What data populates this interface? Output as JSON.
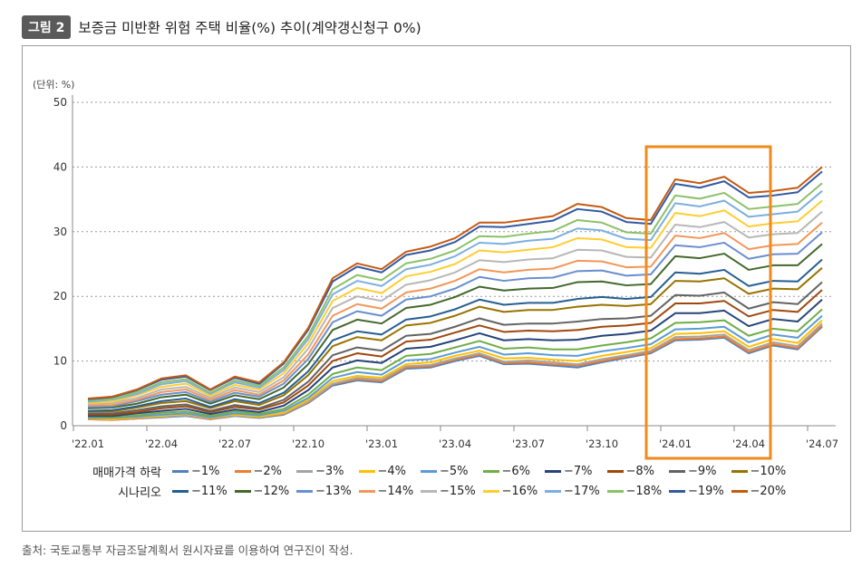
{
  "header": {
    "figure_label": "그림 2",
    "title": "보증금 미반환 위험 주택 비율(%) 추이(계약갱신청구 0%)"
  },
  "source": "출처: 국토교통부 자금조달계획서 원시자료를 이용하여 연구진이 작성.",
  "highlight_color": "#f08a1c",
  "chart_data": {
    "type": "line",
    "unit_label": "(단위: %)",
    "ylim": [
      0,
      50
    ],
    "yticks": [
      "0",
      "10",
      "20",
      "30",
      "40",
      "50"
    ],
    "grid": true,
    "x": [
      "'22.01",
      "'22.02",
      "'22.03",
      "'22.04",
      "'22.05",
      "'22.06",
      "'22.07",
      "'22.08",
      "'22.09",
      "'22.10",
      "'22.11",
      "'22.12",
      "'23.01",
      "'23.02",
      "'23.03",
      "'23.04",
      "'23.05",
      "'23.06",
      "'23.07",
      "'23.08",
      "'23.09",
      "'23.10",
      "'23.11",
      "'23.12",
      "'24.01",
      "'24.02",
      "'24.03",
      "'24.04",
      "'24.05",
      "'24.06",
      "'24.07"
    ],
    "xtick_labels": [
      "'22.01",
      "'22.04",
      "'22.07",
      "'22.10",
      "'23.01",
      "'23.04",
      "'23.07",
      "'23.10",
      "'24.01",
      "'24.04",
      "'24.07"
    ],
    "highlight_range": [
      "'23.12",
      "'24.04"
    ],
    "legend": {
      "row1_title": "매매가격 하락",
      "row2_title": "시나리오",
      "placement": "bottom"
    },
    "series": [
      {
        "name": "−1%",
        "color": "#4f81bd",
        "values": [
          1.0,
          0.9,
          1.1,
          1.3,
          1.5,
          1.0,
          1.5,
          1.2,
          1.7,
          3.5,
          6.2,
          7.0,
          6.7,
          8.8,
          9.0,
          10.0,
          10.8,
          9.5,
          9.6,
          9.3,
          9.0,
          9.8,
          10.5,
          11.2,
          13.2,
          13.3,
          13.6,
          11.2,
          12.4,
          11.8,
          15.3
        ]
      },
      {
        "name": "−2%",
        "color": "#ed7d31",
        "values": [
          1.0,
          0.9,
          1.1,
          1.4,
          1.6,
          1.0,
          1.6,
          1.3,
          1.8,
          3.6,
          6.4,
          7.2,
          6.9,
          9.0,
          9.2,
          10.2,
          11.0,
          9.7,
          9.8,
          9.5,
          9.3,
          10.0,
          10.7,
          11.4,
          13.4,
          13.5,
          13.8,
          11.4,
          12.6,
          12.0,
          15.5
        ]
      },
      {
        "name": "−3%",
        "color": "#a5a5a5",
        "values": [
          1.1,
          1.0,
          1.2,
          1.4,
          1.6,
          1.1,
          1.6,
          1.3,
          1.9,
          3.7,
          6.5,
          7.4,
          7.1,
          9.2,
          9.4,
          10.4,
          11.2,
          9.9,
          10.1,
          9.8,
          9.5,
          10.3,
          10.9,
          11.6,
          13.7,
          13.8,
          14.1,
          11.7,
          12.9,
          12.3,
          15.8
        ]
      },
      {
        "name": "−4%",
        "color": "#ffc000",
        "values": [
          1.1,
          1.0,
          1.3,
          1.5,
          1.8,
          1.2,
          1.7,
          1.4,
          2.0,
          4.0,
          6.9,
          7.7,
          7.4,
          9.5,
          9.8,
          10.8,
          11.6,
          10.4,
          10.5,
          10.2,
          10.0,
          10.8,
          11.4,
          12.0,
          14.2,
          14.3,
          14.6,
          12.2,
          13.4,
          12.8,
          16.3
        ]
      },
      {
        "name": "−5%",
        "color": "#5b9bd5",
        "values": [
          1.2,
          1.2,
          1.4,
          1.7,
          1.9,
          1.3,
          1.9,
          1.6,
          2.3,
          4.3,
          7.4,
          8.3,
          7.9,
          10.1,
          10.3,
          11.3,
          12.2,
          11.0,
          11.2,
          10.9,
          10.8,
          11.5,
          12.0,
          12.6,
          14.9,
          15.0,
          15.3,
          12.9,
          14.1,
          13.6,
          17.0
        ]
      },
      {
        "name": "−6%",
        "color": "#70ad47",
        "values": [
          1.4,
          1.3,
          1.6,
          2.0,
          2.2,
          1.5,
          2.2,
          1.8,
          2.6,
          4.8,
          8.0,
          9.0,
          8.6,
          10.8,
          11.1,
          12.1,
          13.1,
          11.9,
          12.1,
          11.8,
          11.8,
          12.4,
          12.9,
          13.5,
          15.9,
          16.0,
          16.3,
          13.9,
          15.0,
          14.6,
          18.0
        ]
      },
      {
        "name": "−7%",
        "color": "#264478",
        "values": [
          1.5,
          1.5,
          1.9,
          2.3,
          2.6,
          1.8,
          2.5,
          2.1,
          3.1,
          5.5,
          9.0,
          10.1,
          9.7,
          11.9,
          12.2,
          13.2,
          14.3,
          13.2,
          13.4,
          13.2,
          13.3,
          13.9,
          14.2,
          14.7,
          17.4,
          17.4,
          17.8,
          15.4,
          16.5,
          16.1,
          19.5
        ]
      },
      {
        "name": "−8%",
        "color": "#9e480e",
        "values": [
          1.7,
          1.7,
          2.1,
          2.7,
          3.0,
          2.1,
          2.9,
          2.5,
          3.6,
          6.2,
          10.0,
          11.2,
          10.7,
          13.0,
          13.3,
          14.4,
          15.5,
          14.5,
          14.7,
          14.6,
          14.8,
          15.3,
          15.5,
          15.9,
          18.9,
          18.9,
          19.3,
          16.9,
          17.9,
          17.6,
          21.0
        ]
      },
      {
        "name": "−9%",
        "color": "#636363",
        "values": [
          1.9,
          1.9,
          2.4,
          3.0,
          3.3,
          2.3,
          3.2,
          2.7,
          4.0,
          6.8,
          10.9,
          12.1,
          11.6,
          13.9,
          14.2,
          15.3,
          16.6,
          15.6,
          15.8,
          15.8,
          16.1,
          16.5,
          16.6,
          17.0,
          20.2,
          20.1,
          20.6,
          18.1,
          19.1,
          18.8,
          22.2
        ]
      },
      {
        "name": "−10%",
        "color": "#997300",
        "values": [
          2.2,
          2.2,
          2.8,
          3.5,
          3.8,
          2.7,
          3.8,
          3.2,
          4.7,
          7.8,
          12.3,
          13.7,
          13.2,
          15.5,
          15.9,
          17.0,
          18.4,
          17.6,
          17.9,
          17.9,
          18.4,
          18.7,
          18.5,
          18.8,
          22.4,
          22.3,
          22.8,
          20.4,
          21.2,
          21.1,
          24.4
        ]
      },
      {
        "name": "−11%",
        "color": "#255e91",
        "values": [
          2.3,
          2.4,
          3.0,
          3.8,
          4.2,
          2.9,
          4.1,
          3.5,
          5.1,
          8.4,
          13.2,
          14.6,
          14.1,
          16.4,
          16.9,
          18.0,
          19.5,
          18.7,
          19.0,
          19.0,
          19.6,
          19.9,
          19.6,
          19.9,
          23.7,
          23.5,
          24.1,
          21.6,
          22.4,
          22.3,
          25.7
        ]
      },
      {
        "name": "−12%",
        "color": "#43682b",
        "values": [
          2.7,
          2.8,
          3.4,
          4.4,
          4.8,
          3.4,
          4.7,
          4.1,
          5.9,
          9.5,
          14.8,
          16.4,
          15.8,
          18.2,
          18.7,
          19.9,
          21.5,
          20.9,
          21.2,
          21.3,
          22.2,
          22.3,
          21.7,
          21.9,
          26.2,
          25.9,
          26.6,
          24.1,
          24.8,
          24.8,
          28.1
        ]
      },
      {
        "name": "−13%",
        "color": "#698ed0",
        "values": [
          2.9,
          3.0,
          3.8,
          4.8,
          5.2,
          3.7,
          5.1,
          4.5,
          6.5,
          10.3,
          16.0,
          17.7,
          17.0,
          19.5,
          20.0,
          21.2,
          23.0,
          22.4,
          22.8,
          22.9,
          23.9,
          24.0,
          23.2,
          23.4,
          27.9,
          27.6,
          28.3,
          25.8,
          26.5,
          26.6,
          29.9
        ]
      },
      {
        "name": "−14%",
        "color": "#f1975a",
        "values": [
          3.1,
          3.2,
          4.0,
          5.2,
          5.6,
          4.0,
          5.5,
          4.8,
          7.0,
          11.0,
          17.0,
          18.8,
          18.1,
          20.6,
          21.2,
          22.4,
          24.2,
          23.7,
          24.1,
          24.3,
          25.5,
          25.4,
          24.5,
          24.6,
          29.4,
          29.0,
          29.8,
          27.3,
          27.9,
          28.1,
          31.4
        ]
      },
      {
        "name": "−15%",
        "color": "#b7b7b7",
        "values": [
          3.3,
          3.5,
          4.3,
          5.6,
          6.0,
          4.3,
          5.9,
          5.2,
          7.5,
          11.9,
          18.2,
          20.0,
          19.3,
          21.8,
          22.5,
          23.7,
          25.6,
          25.3,
          25.7,
          25.9,
          27.2,
          27.1,
          26.1,
          26.0,
          31.1,
          30.7,
          31.5,
          29.1,
          29.6,
          29.8,
          33.1
        ]
      },
      {
        "name": "−16%",
        "color": "#ffcd33",
        "values": [
          3.5,
          3.7,
          4.7,
          6.0,
          6.5,
          4.6,
          6.3,
          5.6,
          8.1,
          12.7,
          19.3,
          21.3,
          20.5,
          23.1,
          23.8,
          25.0,
          27.1,
          26.8,
          27.2,
          27.6,
          29.0,
          28.8,
          27.6,
          27.5,
          32.9,
          32.4,
          33.3,
          30.8,
          31.3,
          31.6,
          34.8
        ]
      },
      {
        "name": "−17%",
        "color": "#7cafdd",
        "values": [
          3.7,
          4.0,
          4.9,
          6.4,
          6.9,
          4.9,
          6.7,
          5.9,
          8.6,
          13.4,
          20.3,
          22.4,
          21.6,
          24.2,
          24.9,
          26.2,
          28.3,
          28.1,
          28.6,
          28.9,
          30.5,
          30.2,
          28.9,
          28.7,
          34.4,
          33.9,
          34.8,
          32.3,
          32.7,
          33.1,
          36.3
        ]
      },
      {
        "name": "−18%",
        "color": "#8cc168",
        "values": [
          3.9,
          4.1,
          5.2,
          6.7,
          7.2,
          5.1,
          7.0,
          6.2,
          9.0,
          13.9,
          21.1,
          23.3,
          22.5,
          25.1,
          25.8,
          27.1,
          29.3,
          29.2,
          29.7,
          30.1,
          31.8,
          31.4,
          29.9,
          29.7,
          35.6,
          35.1,
          36.0,
          33.5,
          33.9,
          34.3,
          37.5
        ]
      },
      {
        "name": "−19%",
        "color": "#335aa1",
        "values": [
          4.1,
          4.4,
          5.5,
          7.1,
          7.6,
          5.5,
          7.4,
          6.5,
          9.6,
          14.8,
          22.3,
          24.6,
          23.7,
          26.4,
          27.1,
          28.4,
          30.8,
          30.7,
          31.2,
          31.7,
          33.5,
          33.1,
          31.5,
          31.2,
          37.4,
          36.8,
          37.8,
          35.3,
          35.6,
          36.1,
          39.3
        ]
      },
      {
        "name": "−20%",
        "color": "#c55a11",
        "values": [
          4.2,
          4.5,
          5.6,
          7.3,
          7.8,
          5.6,
          7.6,
          6.7,
          9.8,
          15.1,
          22.8,
          25.1,
          24.2,
          26.9,
          27.7,
          29.0,
          31.4,
          31.4,
          31.9,
          32.4,
          34.3,
          33.8,
          32.1,
          31.8,
          38.1,
          37.5,
          38.5,
          36.0,
          36.3,
          36.8,
          40.0
        ]
      }
    ]
  }
}
